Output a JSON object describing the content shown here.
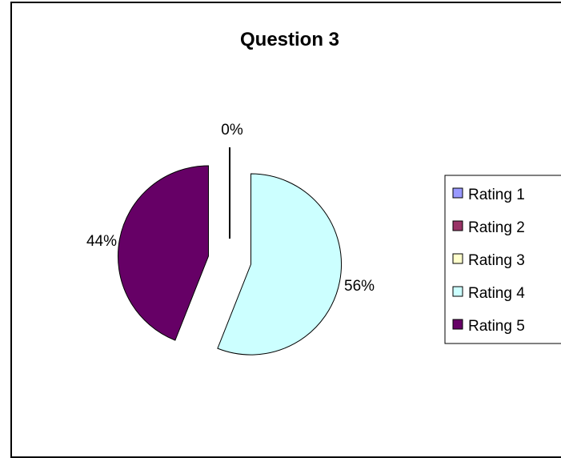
{
  "chart_data": {
    "type": "pie",
    "title": "Question 3",
    "categories": [
      "Rating 1",
      "Rating 2",
      "Rating 3",
      "Rating 4",
      "Rating 5"
    ],
    "values": [
      0,
      0,
      0,
      56,
      44
    ],
    "labels": [
      "0%",
      "0%",
      "0%",
      "56%",
      "44%"
    ],
    "shown_labels": [
      "0%",
      "56%",
      "44%"
    ],
    "colors": [
      "#9999FF",
      "#993366",
      "#FFFFCC",
      "#CCFFFF",
      "#660066"
    ],
    "legend_position": "right",
    "exploded": true
  }
}
